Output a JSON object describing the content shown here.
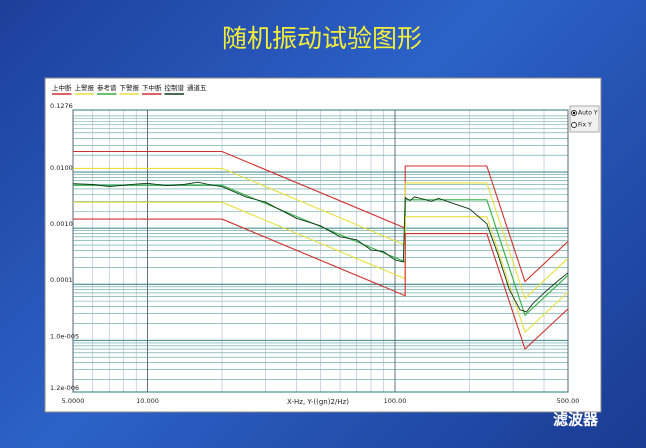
{
  "chart_data": {
    "type": "line",
    "title": "随机振动试验图形",
    "x_label": "X-Hz, Y-((gn)2/Hz)",
    "log_x": true,
    "log_y": true,
    "grid": true,
    "xlim": [
      5,
      500
    ],
    "ylim": [
      1.2e-06,
      0.1276
    ],
    "xticks": [
      {
        "value": 5,
        "label": "5.0000"
      },
      {
        "value": 10,
        "label": "10.000"
      },
      {
        "value": 100,
        "label": "100.00"
      },
      {
        "value": 500,
        "label": "500.00"
      }
    ],
    "yticks": [
      {
        "value": 0.1276,
        "label": "0.1276"
      },
      {
        "value": 0.01,
        "label": "0.0100"
      },
      {
        "value": 0.001,
        "label": "0.0010"
      },
      {
        "value": 0.0001,
        "label": "0.0001"
      },
      {
        "value": 1e-05,
        "label": "1.0e-005"
      },
      {
        "value": 1.2e-06,
        "label": "1.2e-006"
      }
    ],
    "x": [
      5,
      20,
      110,
      110,
      150,
      235,
      335,
      500
    ],
    "series": [
      {
        "name": "上中断",
        "color": "#d03030",
        "values": [
          0.0232,
          0.0232,
          0.001,
          0.0128,
          0.0128,
          0.0128,
          0.000112,
          0.00058
        ]
      },
      {
        "name": "上警报",
        "color": "#e8e040",
        "values": [
          0.0116,
          0.0116,
          0.0005,
          0.0064,
          0.0064,
          0.0064,
          5.6e-05,
          0.00029
        ]
      },
      {
        "name": "参考谱",
        "color": "#30b040",
        "values": [
          0.0058,
          0.0058,
          0.00025,
          0.0032,
          0.0032,
          0.0032,
          2.8e-05,
          0.000145
        ]
      },
      {
        "name": "下警报",
        "color": "#e8e040",
        "values": [
          0.0029,
          0.0029,
          0.000125,
          0.0016,
          0.0016,
          0.0016,
          1.4e-05,
          7.25e-05
        ]
      },
      {
        "name": "下中断",
        "color": "#d03030",
        "values": [
          0.00145,
          0.00145,
          6.25e-05,
          0.0008,
          0.0008,
          0.0008,
          7e-06,
          3.63e-05
        ]
      },
      {
        "name": "控制谱",
        "color": "#103818",
        "x": [
          5,
          6,
          7,
          8,
          9,
          10,
          12,
          14,
          16,
          18,
          20,
          25,
          30,
          40,
          50,
          60,
          70,
          80,
          90,
          100,
          108,
          110,
          115,
          120,
          130,
          140,
          150,
          170,
          200,
          235,
          260,
          290,
          320,
          340,
          360,
          400,
          450,
          500
        ],
        "values": [
          0.0062,
          0.006,
          0.0055,
          0.0058,
          0.0061,
          0.0063,
          0.0057,
          0.006,
          0.0066,
          0.0059,
          0.0055,
          0.0036,
          0.0029,
          0.0015,
          0.0011,
          0.0007,
          0.00062,
          0.00041,
          0.00038,
          0.00027,
          0.00025,
          0.0035,
          0.0031,
          0.0036,
          0.0033,
          0.003,
          0.0034,
          0.0028,
          0.0022,
          0.0012,
          0.00035,
          8e-05,
          3.5e-05,
          3.2e-05,
          4.5e-05,
          7e-05,
          0.00011,
          0.00016
        ]
      }
    ],
    "channel_label": "通道五",
    "options": [
      "Auto Y",
      "Fix Y"
    ],
    "watermark": "滤波器"
  }
}
